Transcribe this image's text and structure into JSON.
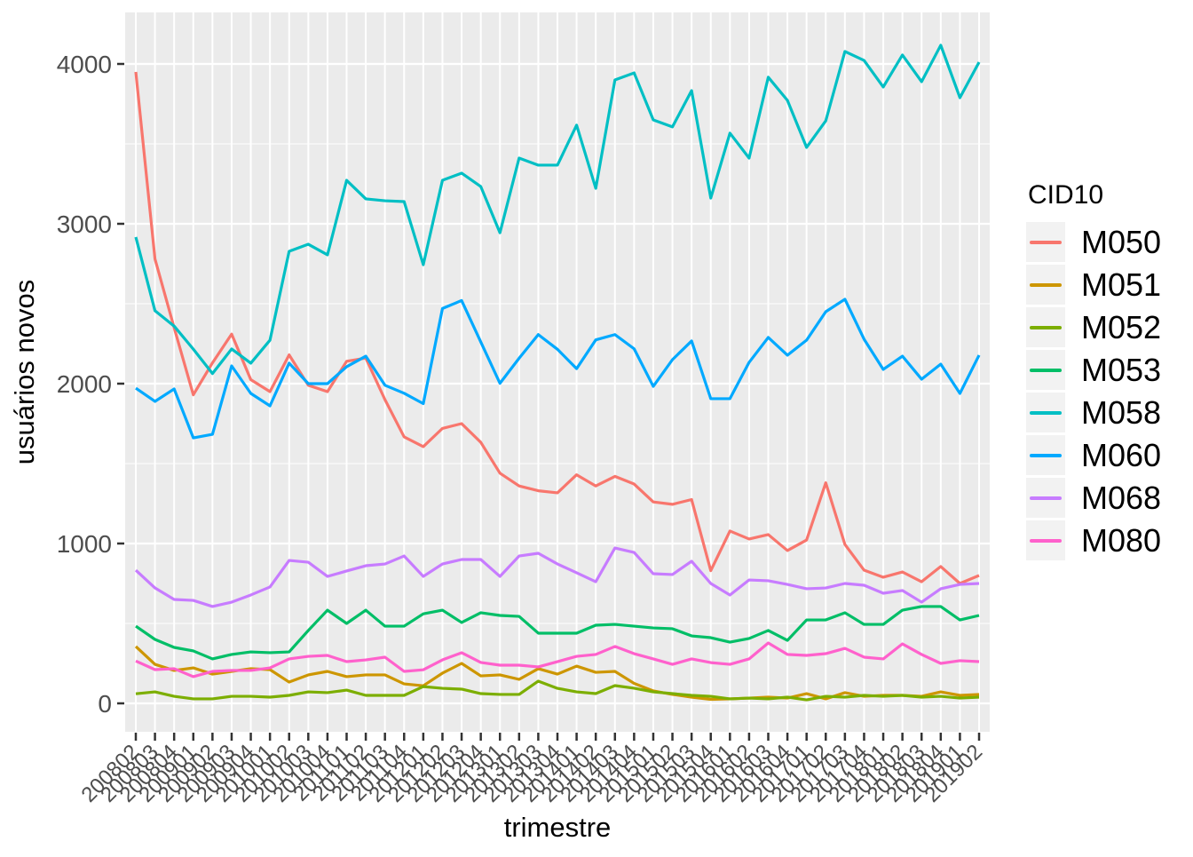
{
  "panel": {
    "fill": "#EBEBEB",
    "grid_color": "#FFFFFF",
    "tick_mark_color": "#333333",
    "tick_label_color": "#4D4D4D",
    "axis_title_color": "#000000",
    "legend_key_fill": "#F2F2F2"
  },
  "chart_data": {
    "type": "line",
    "title": "",
    "xlabel": "trimestre",
    "ylabel": "usuários novos",
    "legend_title": "CID10",
    "legend_position": "right",
    "grid": "white major+minor gridlines on grey panel",
    "ylim": [
      -190,
      4320
    ],
    "y_major_ticks": [
      0,
      1000,
      2000,
      3000,
      4000
    ],
    "y_minor_ticks": [
      500,
      1500,
      2500,
      3500
    ],
    "x_tick_labels": [
      "200802",
      "200803",
      "200804",
      "200901",
      "200902",
      "200903",
      "200904",
      "201001",
      "201002",
      "201003",
      "201004",
      "201101",
      "201102",
      "201103",
      "201104",
      "201201",
      "201202",
      "201203",
      "201204",
      "201301",
      "201302",
      "201303",
      "201304",
      "201401",
      "201402",
      "201403",
      "201404",
      "201501",
      "201502",
      "201503",
      "201504",
      "201601",
      "201602",
      "201603",
      "201604",
      "201701",
      "201702",
      "201703",
      "201704",
      "201801",
      "201802",
      "201803",
      "201804",
      "201901",
      "201902"
    ],
    "series": [
      {
        "name": "M050",
        "color": "#F8766D",
        "values": [
          3950,
          2780,
          2350,
          1930,
          2130,
          2310,
          2025,
          1950,
          2180,
          1990,
          1950,
          2140,
          2160,
          1900,
          1667,
          1606,
          1720,
          1750,
          1633,
          1440,
          1360,
          1330,
          1317,
          1430,
          1360,
          1420,
          1372,
          1260,
          1245,
          1275,
          830,
          1078,
          1028,
          1056,
          956,
          1022,
          1380,
          994,
          833,
          789,
          822,
          761,
          856,
          750,
          800
        ]
      },
      {
        "name": "M051",
        "color": "#CD9600",
        "values": [
          356,
          244,
          206,
          222,
          183,
          200,
          217,
          211,
          133,
          178,
          200,
          167,
          178,
          178,
          122,
          110,
          189,
          250,
          172,
          178,
          150,
          217,
          183,
          233,
          194,
          200,
          125,
          78,
          56,
          39,
          25,
          28,
          33,
          39,
          33,
          61,
          28,
          67,
          44,
          50,
          50,
          44,
          72,
          50,
          56
        ]
      },
      {
        "name": "M052",
        "color": "#7CAE00",
        "values": [
          60,
          72,
          44,
          28,
          28,
          44,
          44,
          39,
          50,
          72,
          67,
          83,
          50,
          50,
          50,
          105,
          94,
          89,
          61,
          56,
          56,
          139,
          94,
          72,
          61,
          111,
          95,
          72,
          61,
          50,
          44,
          28,
          33,
          28,
          39,
          22,
          44,
          39,
          50,
          44,
          50,
          39,
          44,
          33,
          39
        ]
      },
      {
        "name": "M053",
        "color": "#00BE67",
        "values": [
          483,
          400,
          350,
          328,
          278,
          306,
          322,
          317,
          322,
          456,
          583,
          500,
          583,
          483,
          483,
          560,
          583,
          506,
          567,
          550,
          544,
          439,
          439,
          439,
          489,
          494,
          483,
          472,
          467,
          422,
          411,
          383,
          406,
          456,
          394,
          522,
          522,
          567,
          494,
          494,
          583,
          606,
          606,
          522,
          550
        ]
      },
      {
        "name": "M058",
        "color": "#00BFC4",
        "values": [
          2917,
          2456,
          2360,
          2216,
          2063,
          2217,
          2128,
          2272,
          2828,
          2872,
          2806,
          3272,
          3156,
          3144,
          3139,
          2744,
          3272,
          3317,
          3233,
          2944,
          3411,
          3367,
          3367,
          3617,
          3222,
          3900,
          3944,
          3650,
          3606,
          3833,
          3161,
          3567,
          3411,
          3917,
          3772,
          3478,
          3644,
          4078,
          4022,
          3856,
          4056,
          3889,
          4117,
          3789,
          4011
        ]
      },
      {
        "name": "M060",
        "color": "#00A9FF",
        "values": [
          1972,
          1889,
          1967,
          1661,
          1683,
          2111,
          1939,
          1861,
          2128,
          2000,
          2000,
          2106,
          2172,
          1990,
          1940,
          1875,
          2470,
          2520,
          2261,
          2002,
          2159,
          2307,
          2215,
          2094,
          2274,
          2307,
          2218,
          1983,
          2150,
          2267,
          1906,
          1906,
          2133,
          2289,
          2178,
          2272,
          2450,
          2528,
          2278,
          2089,
          2172,
          2028,
          2122,
          1939,
          2178
        ]
      },
      {
        "name": "M068",
        "color": "#C77CFF",
        "values": [
          833,
          722,
          650,
          644,
          606,
          633,
          678,
          728,
          894,
          883,
          794,
          828,
          861,
          872,
          922,
          794,
          872,
          900,
          900,
          794,
          922,
          939,
          872,
          817,
          761,
          972,
          944,
          811,
          806,
          889,
          750,
          678,
          772,
          767,
          744,
          717,
          722,
          750,
          739,
          689,
          706,
          633,
          717,
          744,
          750
        ]
      },
      {
        "name": "M080",
        "color": "#FF61CC",
        "values": [
          265,
          211,
          217,
          167,
          200,
          206,
          206,
          222,
          278,
          294,
          300,
          261,
          272,
          289,
          200,
          210,
          272,
          317,
          256,
          239,
          239,
          228,
          261,
          294,
          306,
          356,
          311,
          278,
          244,
          278,
          255,
          244,
          278,
          378,
          306,
          300,
          311,
          344,
          289,
          278,
          372,
          306,
          250,
          267,
          261
        ]
      }
    ]
  }
}
